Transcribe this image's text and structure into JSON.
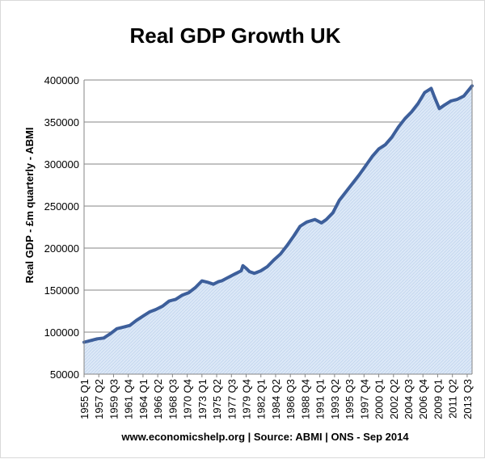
{
  "chart_data": {
    "type": "area",
    "title": "Real GDP Growth UK",
    "ylabel": "Real GDP - £m quarterly  - ABMI",
    "source": "www.economicshelp.org | Source:  ABMI | ONS - Sep 2014",
    "ylim": [
      50000,
      400000
    ],
    "y_ticks": [
      "50000",
      "100000",
      "150000",
      "200000",
      "250000",
      "300000",
      "350000",
      "400000"
    ],
    "x_tick_labels": [
      "1955 Q1",
      "1957 Q2",
      "1959 Q3",
      "1961 Q4",
      "1964 Q1",
      "1966 Q2",
      "1968 Q3",
      "1970 Q4",
      "1973 Q1",
      "1975 Q2",
      "1977 Q3",
      "1979 Q4",
      "1982 Q1",
      "1984 Q2",
      "1986 Q3",
      "1988 Q4",
      "1991 Q1",
      "1993 Q2",
      "1995 Q3",
      "1997 Q4",
      "2000 Q1",
      "2002 Q2",
      "2004 Q3",
      "2006 Q4",
      "2009 Q1",
      "2011 Q2",
      "2013 Q3"
    ],
    "grid": "horizontal",
    "colors": {
      "line": "#3d5f9b",
      "fill": "#dce8f7",
      "grid": "#868686"
    },
    "x_range": [
      "1955 Q1",
      "2014 Q2"
    ],
    "series": [
      {
        "x": [
          "1955 Q1",
          "1956 Q1",
          "1957 Q1",
          "1958 Q1",
          "1959 Q1",
          "1960 Q1",
          "1961 Q1",
          "1962 Q1",
          "1963 Q1",
          "1964 Q1",
          "1965 Q1",
          "1966 Q1",
          "1967 Q1",
          "1968 Q1",
          "1969 Q1",
          "1970 Q1",
          "1971 Q1",
          "1972 Q1",
          "1973 Q1",
          "1973 Q3",
          "1974 Q1",
          "1974 Q4",
          "1975 Q3",
          "1976 Q1",
          "1977 Q1",
          "1978 Q1",
          "1979 Q1",
          "1979 Q2",
          "1979 Q4",
          "1980 Q2",
          "1981 Q1",
          "1982 Q1",
          "1983 Q1",
          "1984 Q1",
          "1985 Q1",
          "1986 Q1",
          "1987 Q1",
          "1988 Q1",
          "1989 Q1",
          "1990 Q2",
          "1991 Q2",
          "1992 Q1",
          "1993 Q1",
          "1994 Q1",
          "1995 Q1",
          "1996 Q1",
          "1997 Q1",
          "1998 Q1",
          "1999 Q1",
          "2000 Q1",
          "2001 Q1",
          "2002 Q1",
          "2003 Q1",
          "2004 Q1",
          "2005 Q1",
          "2006 Q1",
          "2007 Q1",
          "2008 Q1",
          "2008 Q3",
          "2009 Q2",
          "2010 Q1",
          "2011 Q1",
          "2012 Q1",
          "2013 Q1",
          "2014 Q2"
        ],
        "values": [
          88000,
          90000,
          92000,
          93000,
          98000,
          104000,
          106000,
          108000,
          114000,
          119000,
          124000,
          127000,
          131000,
          137000,
          139000,
          144000,
          147000,
          153000,
          161000,
          160000,
          159000,
          157000,
          160000,
          161000,
          165000,
          169000,
          173000,
          179000,
          176000,
          172000,
          170000,
          173000,
          178000,
          186000,
          193000,
          203000,
          214000,
          226000,
          231000,
          234000,
          230000,
          234000,
          242000,
          257000,
          267000,
          277000,
          287000,
          298000,
          309000,
          318000,
          323000,
          332000,
          344000,
          354000,
          362000,
          372000,
          385000,
          390000,
          380000,
          366000,
          370000,
          375000,
          377000,
          381000,
          393000
        ]
      }
    ]
  }
}
